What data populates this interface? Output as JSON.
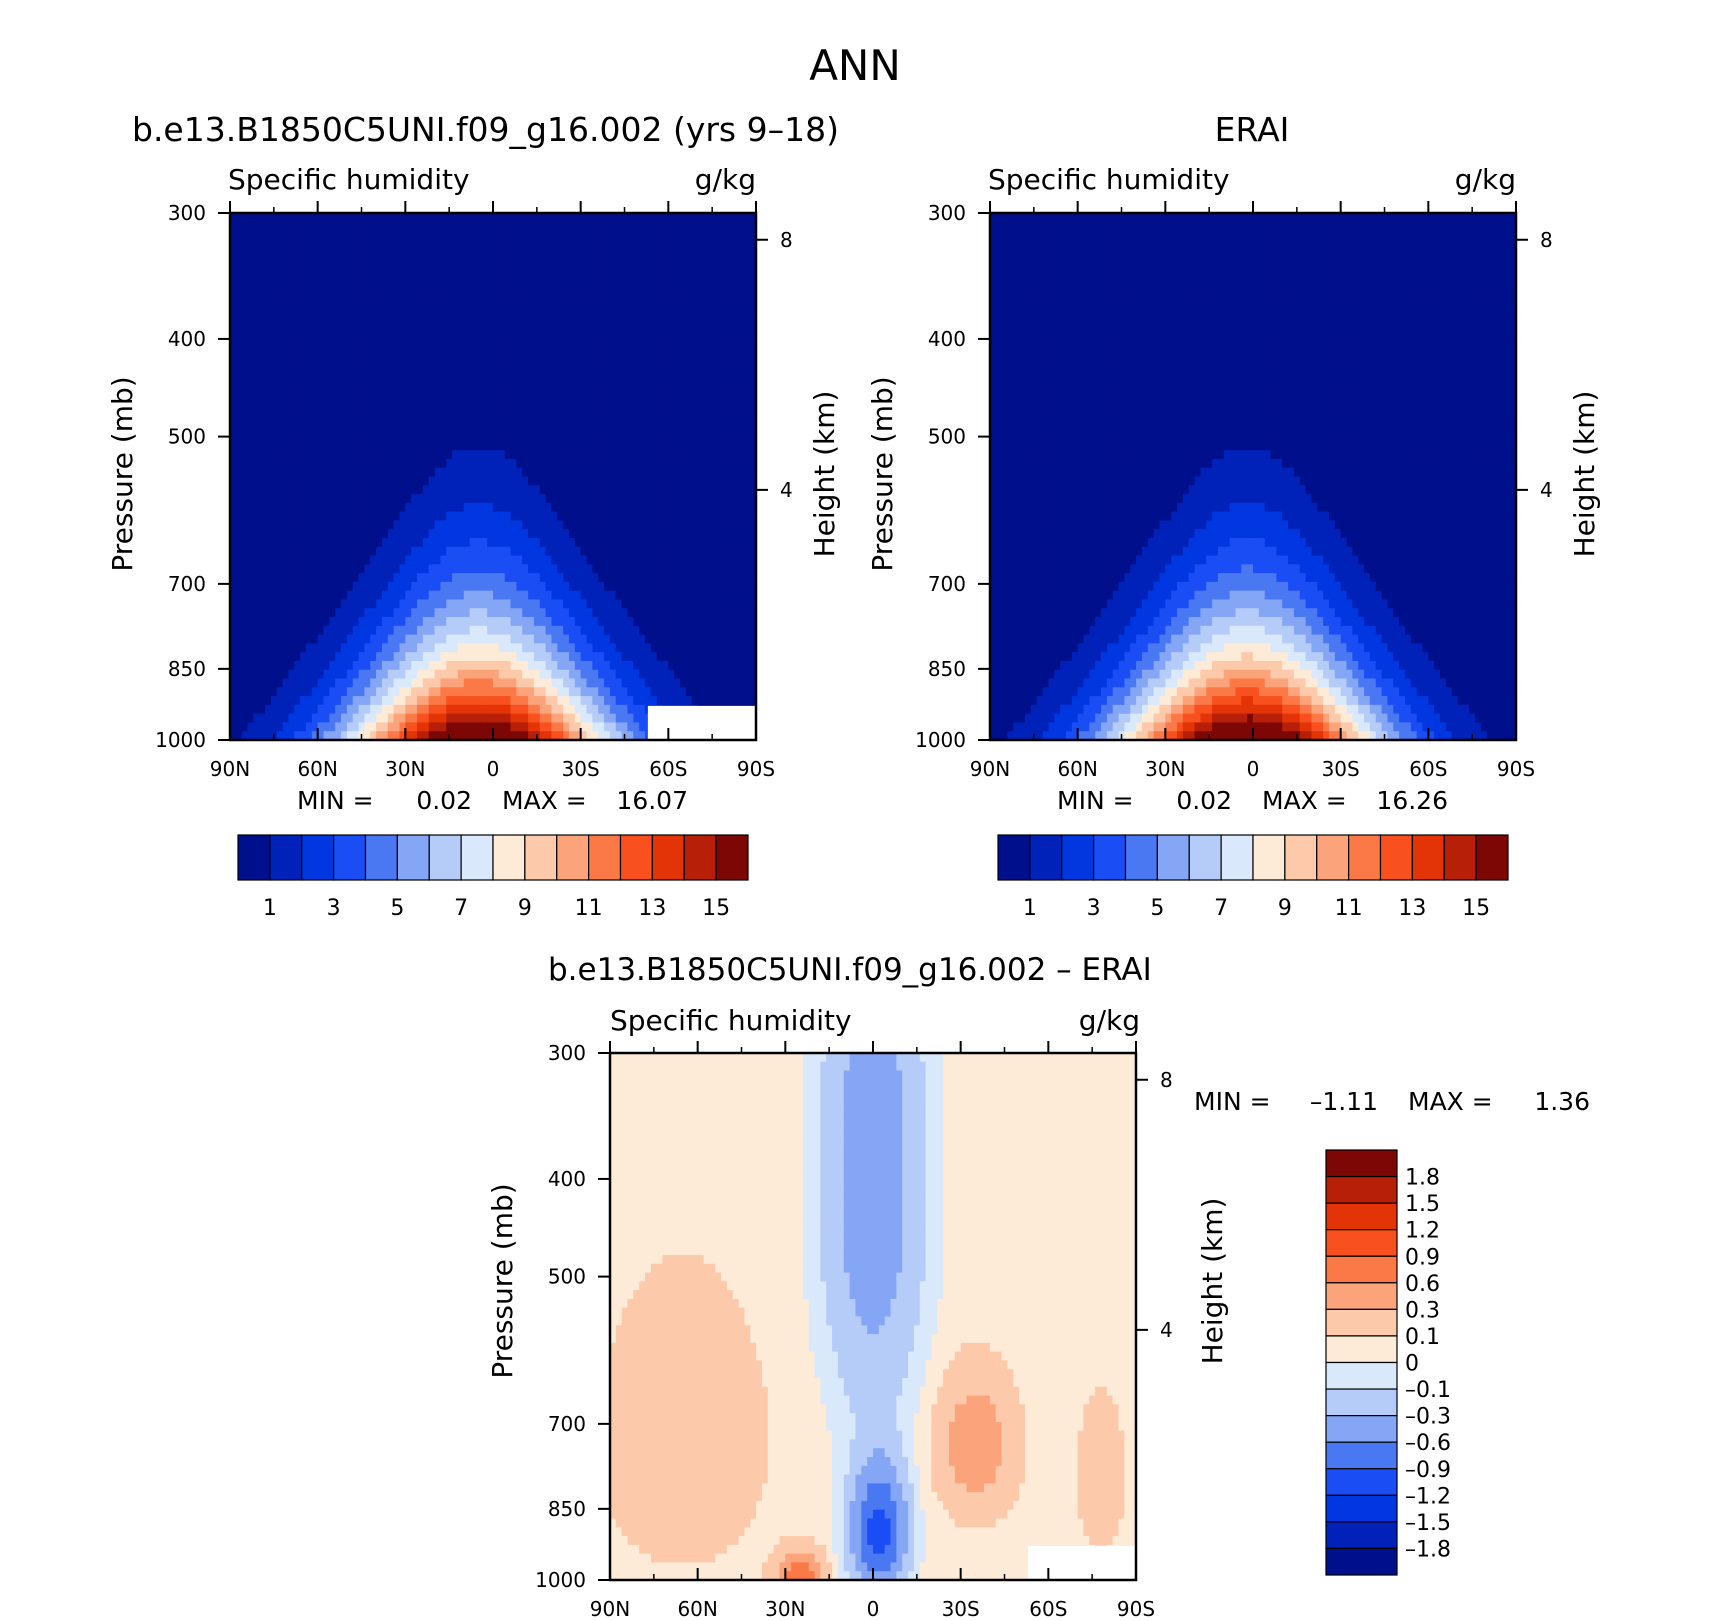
{
  "page_title": "ANN",
  "panels": [
    {
      "title": "b.e13.B1850C5UNI.f09_g16.002 (yrs 9–18)",
      "left_label": "Specific humidity",
      "right_label": "g/kg",
      "y_label": "Pressure (mb)",
      "y2_label": "Height (km)",
      "stats": {
        "min_label": "MIN =",
        "min": "0.02",
        "max_label": "MAX =",
        "max": "16.07"
      }
    },
    {
      "title": "ERAI",
      "left_label": "Specific humidity",
      "right_label": "g/kg",
      "y_label": "Pressure (mb)",
      "y2_label": "Height (km)",
      "stats": {
        "min_label": "MIN =",
        "min": "0.02",
        "max_label": "MAX =",
        "max": "16.26"
      }
    },
    {
      "title": "b.e13.B1850C5UNI.f09_g16.002 – ERAI",
      "left_label": "Specific humidity",
      "right_label": "g/kg",
      "y_label": "Pressure (mb)",
      "y2_label": "Height (km)",
      "stats": {
        "min_label": "MIN =",
        "min": "–1.11",
        "max_label": "MAX =",
        "max": "1.36"
      }
    }
  ],
  "chart_data": [
    {
      "type": "heatmap",
      "title": "b.e13.B1850C5UNI.f09_g16.002 (yrs 9–18)",
      "variable": "Specific humidity",
      "units": "g/kg",
      "x_ticks": [
        "90N",
        "60N",
        "30N",
        "0",
        "30S",
        "60S",
        "90S"
      ],
      "x_range": [
        90,
        -90
      ],
      "y_ticks": [
        300,
        400,
        500,
        700,
        850,
        1000
      ],
      "y_range": [
        300,
        1000
      ],
      "y_scale": "log",
      "y2_ticks": [
        8,
        4
      ],
      "contour_levels": [
        1,
        2,
        3,
        4,
        5,
        6,
        7,
        8,
        9,
        10,
        11,
        12,
        13,
        14,
        15
      ],
      "colorbar_labels": [
        "1",
        "3",
        "5",
        "7",
        "9",
        "11",
        "13",
        "15"
      ],
      "min": 0.02,
      "max": 16.07,
      "profile": {
        "center_lat": 5,
        "top_pressure": 400,
        "surface_max": 16.07
      }
    },
    {
      "type": "heatmap",
      "title": "ERAI",
      "variable": "Specific humidity",
      "units": "g/kg",
      "x_ticks": [
        "90N",
        "60N",
        "30N",
        "0",
        "30S",
        "60S",
        "90S"
      ],
      "x_range": [
        90,
        -90
      ],
      "y_ticks": [
        300,
        400,
        500,
        700,
        850,
        1000
      ],
      "y_range": [
        300,
        1000
      ],
      "y_scale": "log",
      "y2_ticks": [
        8,
        4
      ],
      "contour_levels": [
        1,
        2,
        3,
        4,
        5,
        6,
        7,
        8,
        9,
        10,
        11,
        12,
        13,
        14,
        15
      ],
      "colorbar_labels": [
        "1",
        "3",
        "5",
        "7",
        "9",
        "11",
        "13",
        "15"
      ],
      "min": 0.02,
      "max": 16.26,
      "profile": {
        "center_lat": 2,
        "top_pressure": 390,
        "surface_max": 16.26
      }
    },
    {
      "type": "heatmap",
      "title": "b.e13.B1850C5UNI.f09_g16.002 – ERAI",
      "variable": "Specific humidity",
      "units": "g/kg",
      "x_ticks": [
        "90N",
        "60N",
        "30N",
        "0",
        "30S",
        "60S",
        "90S"
      ],
      "x_range": [
        90,
        -90
      ],
      "y_ticks": [
        300,
        400,
        500,
        700,
        850,
        1000
      ],
      "y_range": [
        300,
        1000
      ],
      "y_scale": "log",
      "y2_ticks": [
        8,
        4
      ],
      "contour_levels": [
        -1.8,
        -1.5,
        -1.2,
        -0.9,
        -0.6,
        -0.3,
        -0.1,
        0,
        0.1,
        0.3,
        0.6,
        0.9,
        1.2,
        1.5,
        1.8
      ],
      "colorbar_labels": [
        "1.8",
        "1.5",
        "1.2",
        "0.9",
        "0.6",
        "0.3",
        "0.1",
        "0",
        "–0.1",
        "–0.3",
        "–0.6",
        "–0.9",
        "–1.2",
        "–1.5",
        "–1.8"
      ],
      "min": -1.11,
      "max": 1.36
    }
  ],
  "colors": {
    "seq": [
      "#000f8b",
      "#0022b8",
      "#0037e0",
      "#1b4df5",
      "#4a78f2",
      "#84a6f5",
      "#b5cbf8",
      "#d9e8fb",
      "#fdebd7",
      "#fcc9aa",
      "#fba47b",
      "#fb7847",
      "#f8511f",
      "#e23406",
      "#b71f08",
      "#7d0705"
    ],
    "diff": [
      "#000f8b",
      "#0022b8",
      "#0037e0",
      "#1b4df5",
      "#4a78f2",
      "#84a6f5",
      "#b5cbf8",
      "#d9e8fb",
      "#fdebd7",
      "#fcc9aa",
      "#fba47b",
      "#fb7847",
      "#f8511f",
      "#e23406",
      "#b71f08",
      "#7d0705"
    ]
  }
}
